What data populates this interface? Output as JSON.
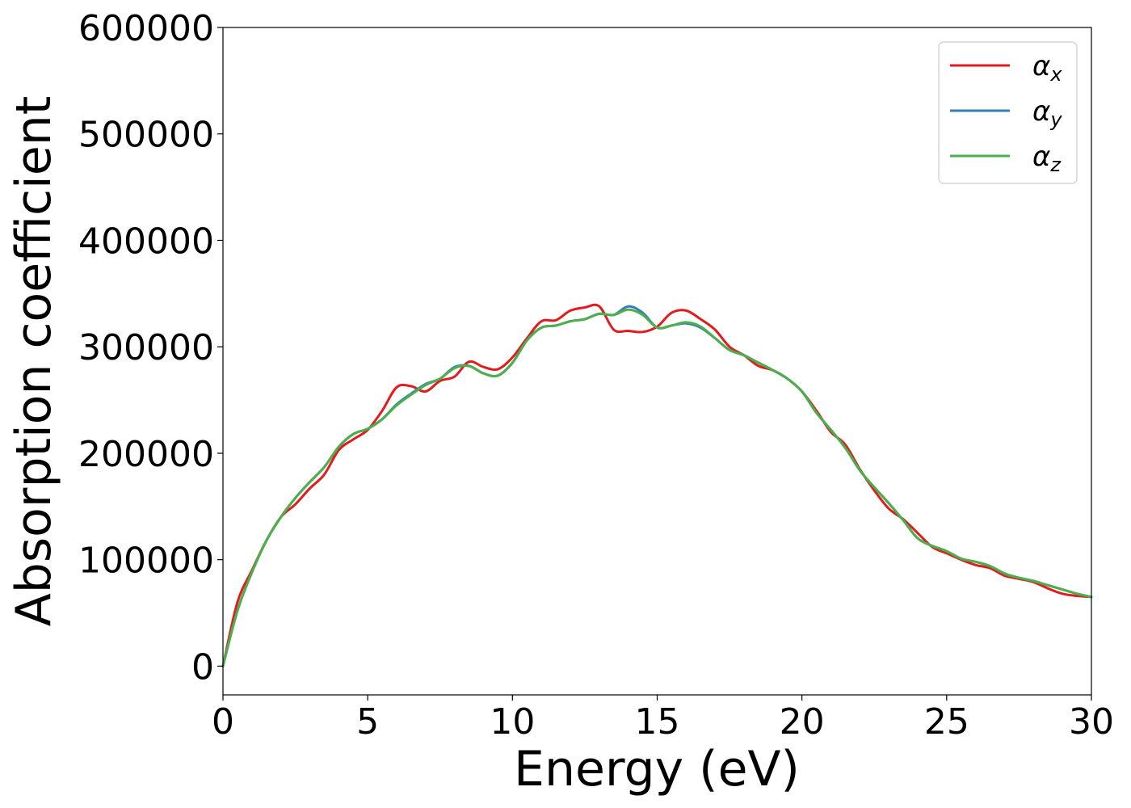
{
  "chart_data": {
    "type": "line",
    "title": "",
    "xlabel": "Energy (eV)",
    "ylabel": "Absorption coefficient",
    "xlim": [
      0,
      30
    ],
    "ylim": [
      -27000,
      600000
    ],
    "xticks": [
      0,
      5,
      10,
      15,
      20,
      25,
      30
    ],
    "yticks": [
      0,
      100000,
      200000,
      300000,
      400000,
      500000,
      600000
    ],
    "xtick_labels": [
      "0",
      "5",
      "10",
      "15",
      "20",
      "25",
      "30"
    ],
    "ytick_labels": [
      "0",
      "100000",
      "200000",
      "300000",
      "400000",
      "500000",
      "600000"
    ],
    "grid": false,
    "legend_position": "top-right",
    "x": [
      0,
      0.5,
      1,
      1.5,
      2,
      2.5,
      3,
      3.5,
      4,
      4.5,
      5,
      5.5,
      6,
      6.5,
      7,
      7.5,
      8,
      8.5,
      9,
      9.5,
      10,
      10.5,
      11,
      11.5,
      12,
      12.5,
      13,
      13.5,
      14,
      14.5,
      15,
      15.5,
      16,
      16.5,
      17,
      17.5,
      18,
      18.5,
      19,
      19.5,
      20,
      20.5,
      21,
      21.5,
      22,
      22.5,
      23,
      23.5,
      24,
      24.5,
      25,
      25.5,
      26,
      26.5,
      27,
      27.5,
      28,
      28.5,
      29,
      29.5,
      30
    ],
    "series": [
      {
        "name": "α",
        "sub": "x",
        "color": "#e41a1c",
        "values": [
          0,
          60000,
          90000,
          118000,
          140000,
          152000,
          167000,
          180000,
          203000,
          213000,
          222000,
          240000,
          262000,
          263000,
          258000,
          268000,
          272000,
          286000,
          281000,
          279000,
          290000,
          308000,
          324000,
          325000,
          334000,
          337000,
          338000,
          316000,
          315000,
          314000,
          319000,
          332000,
          334000,
          326000,
          316000,
          300000,
          292000,
          282000,
          278000,
          270000,
          258000,
          240000,
          220000,
          208000,
          185000,
          165000,
          148000,
          138000,
          125000,
          112000,
          106000,
          100000,
          95000,
          92000,
          85000,
          82000,
          79000,
          73000,
          68000,
          66000,
          65000
        ]
      },
      {
        "name": "α",
        "sub": "y",
        "color": "#377eb8",
        "values": [
          0,
          52000,
          88000,
          118000,
          140000,
          158000,
          173000,
          187000,
          206000,
          218000,
          223000,
          232000,
          246000,
          256000,
          265000,
          270000,
          281000,
          282000,
          275000,
          273000,
          285000,
          306000,
          318000,
          320000,
          324000,
          326000,
          331000,
          330000,
          338000,
          332000,
          318000,
          320000,
          322000,
          318000,
          308000,
          297000,
          292000,
          285000,
          278000,
          270000,
          258000,
          238000,
          222000,
          205000,
          184000,
          168000,
          153000,
          137000,
          120000,
          113000,
          108000,
          101000,
          98000,
          94000,
          87000,
          83000,
          80000,
          76000,
          72000,
          68000,
          65000
        ]
      },
      {
        "name": "α",
        "sub": "z",
        "color": "#4daf4a",
        "values": [
          0,
          52000,
          88000,
          118000,
          140000,
          158000,
          173000,
          187000,
          206000,
          218000,
          223000,
          232000,
          245000,
          255000,
          264000,
          270000,
          280000,
          282000,
          275000,
          273000,
          285000,
          306000,
          318000,
          320000,
          324000,
          326000,
          331000,
          330000,
          335000,
          330000,
          318000,
          320000,
          323000,
          319000,
          308000,
          297000,
          292000,
          285000,
          278000,
          270000,
          258000,
          238000,
          222000,
          205000,
          184000,
          168000,
          153000,
          137000,
          120000,
          113000,
          108000,
          101000,
          98000,
          94000,
          87000,
          83000,
          80000,
          76000,
          72000,
          68000,
          65000
        ]
      }
    ]
  }
}
